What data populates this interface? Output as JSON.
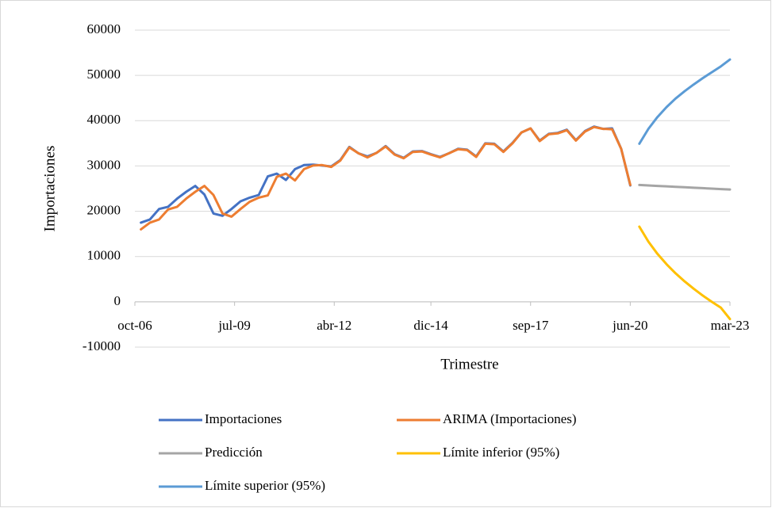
{
  "chart_data": {
    "type": "line",
    "x_label": "Trimestre",
    "y_label": "Importaciones",
    "ylim": [
      -10000,
      60000
    ],
    "yticks": [
      -10000,
      0,
      10000,
      20000,
      30000,
      40000,
      50000,
      60000
    ],
    "xlim": [
      "2006-10",
      "2023-03"
    ],
    "xticks": [
      {
        "value": "2006-10",
        "label": "oct-06"
      },
      {
        "value": "2009-07",
        "label": "jul-09"
      },
      {
        "value": "2012-04",
        "label": "abr-12"
      },
      {
        "value": "2014-12",
        "label": "dic-14"
      },
      {
        "value": "2017-09",
        "label": "sep-17"
      },
      {
        "value": "2020-06",
        "label": "jun-20"
      },
      {
        "value": "2023-03",
        "label": "mar-23"
      }
    ],
    "grid": true,
    "series": [
      {
        "name": "Importaciones",
        "color": "#4472c4",
        "x": [
          "2006-12",
          "2007-03",
          "2007-06",
          "2007-09",
          "2007-12",
          "2008-03",
          "2008-06",
          "2008-09",
          "2008-12",
          "2009-03",
          "2009-06",
          "2009-09",
          "2009-12",
          "2010-03",
          "2010-06",
          "2010-09",
          "2010-12",
          "2011-03",
          "2011-06",
          "2011-09",
          "2011-12",
          "2012-03",
          "2012-06",
          "2012-09",
          "2012-12",
          "2013-03",
          "2013-06",
          "2013-09",
          "2013-12",
          "2014-03",
          "2014-06",
          "2014-09",
          "2014-12",
          "2015-03",
          "2015-06",
          "2015-09",
          "2015-12",
          "2016-03",
          "2016-06",
          "2016-09",
          "2016-12",
          "2017-03",
          "2017-06",
          "2017-09",
          "2017-12",
          "2018-03",
          "2018-06",
          "2018-09",
          "2018-12",
          "2019-03",
          "2019-06",
          "2019-09",
          "2019-12",
          "2020-03",
          "2020-06"
        ],
        "values": [
          17500,
          18200,
          20500,
          21000,
          22800,
          24300,
          25600,
          23700,
          19500,
          19000,
          20500,
          22200,
          23000,
          23600,
          27700,
          28300,
          26900,
          29300,
          30200,
          30300,
          30100,
          29900,
          31300,
          34200,
          32800,
          32100,
          32900,
          34400,
          32600,
          31800,
          33200,
          33300,
          32600,
          32000,
          32800,
          33800,
          33600,
          32100,
          35000,
          34900,
          33200,
          35100,
          37400,
          38300,
          35600,
          37100,
          37300,
          38000,
          35700,
          37700,
          38700,
          38200,
          38300,
          33800,
          25700
        ]
      },
      {
        "name": "ARIMA (Importaciones)",
        "color": "#ed7d31",
        "x": [
          "2006-12",
          "2007-03",
          "2007-06",
          "2007-09",
          "2007-12",
          "2008-03",
          "2008-06",
          "2008-09",
          "2008-12",
          "2009-03",
          "2009-06",
          "2009-09",
          "2009-12",
          "2010-03",
          "2010-06",
          "2010-09",
          "2010-12",
          "2011-03",
          "2011-06",
          "2011-09",
          "2011-12",
          "2012-03",
          "2012-06",
          "2012-09",
          "2012-12",
          "2013-03",
          "2013-06",
          "2013-09",
          "2013-12",
          "2014-03",
          "2014-06",
          "2014-09",
          "2014-12",
          "2015-03",
          "2015-06",
          "2015-09",
          "2015-12",
          "2016-03",
          "2016-06",
          "2016-09",
          "2016-12",
          "2017-03",
          "2017-06",
          "2017-09",
          "2017-12",
          "2018-03",
          "2018-06",
          "2018-09",
          "2018-12",
          "2019-03",
          "2019-06",
          "2019-09",
          "2019-12",
          "2020-03",
          "2020-06"
        ],
        "values": [
          16000,
          17500,
          18200,
          20400,
          21000,
          22800,
          24300,
          25600,
          23600,
          19500,
          18800,
          20500,
          22100,
          23000,
          23500,
          27600,
          28300,
          26800,
          29300,
          30100,
          30200,
          29800,
          31200,
          34100,
          32800,
          31900,
          32900,
          34300,
          32500,
          31700,
          33100,
          33200,
          32500,
          31900,
          32800,
          33700,
          33500,
          32000,
          34900,
          34800,
          33100,
          35000,
          37400,
          38300,
          35500,
          37000,
          37200,
          37900,
          35600,
          37600,
          38600,
          38200,
          38100,
          33800,
          25800
        ]
      },
      {
        "name": "Predicción",
        "color": "#a5a5a5",
        "x": [
          "2020-09",
          "2020-12",
          "2021-03",
          "2021-06",
          "2021-09",
          "2021-12",
          "2022-03",
          "2022-06",
          "2022-09",
          "2022-12",
          "2023-03"
        ],
        "values": [
          25800,
          25700,
          25600,
          25500,
          25400,
          25300,
          25200,
          25100,
          25000,
          24900,
          24800
        ]
      },
      {
        "name": "Límite inferior (95%)",
        "color": "#ffc000",
        "x": [
          "2020-09",
          "2020-12",
          "2021-03",
          "2021-06",
          "2021-09",
          "2021-12",
          "2022-03",
          "2022-06",
          "2022-09",
          "2022-12",
          "2023-03"
        ],
        "values": [
          16600,
          13300,
          10600,
          8300,
          6300,
          4500,
          2900,
          1400,
          0,
          -1300,
          -3800
        ]
      },
      {
        "name": "Límite superior (95%)",
        "color": "#5b9bd5",
        "x": [
          "2020-09",
          "2020-12",
          "2021-03",
          "2021-06",
          "2021-09",
          "2021-12",
          "2022-03",
          "2022-06",
          "2022-09",
          "2022-12",
          "2023-03"
        ],
        "values": [
          34900,
          38200,
          40800,
          43000,
          44900,
          46500,
          48000,
          49400,
          50700,
          52000,
          53500
        ]
      }
    ]
  }
}
